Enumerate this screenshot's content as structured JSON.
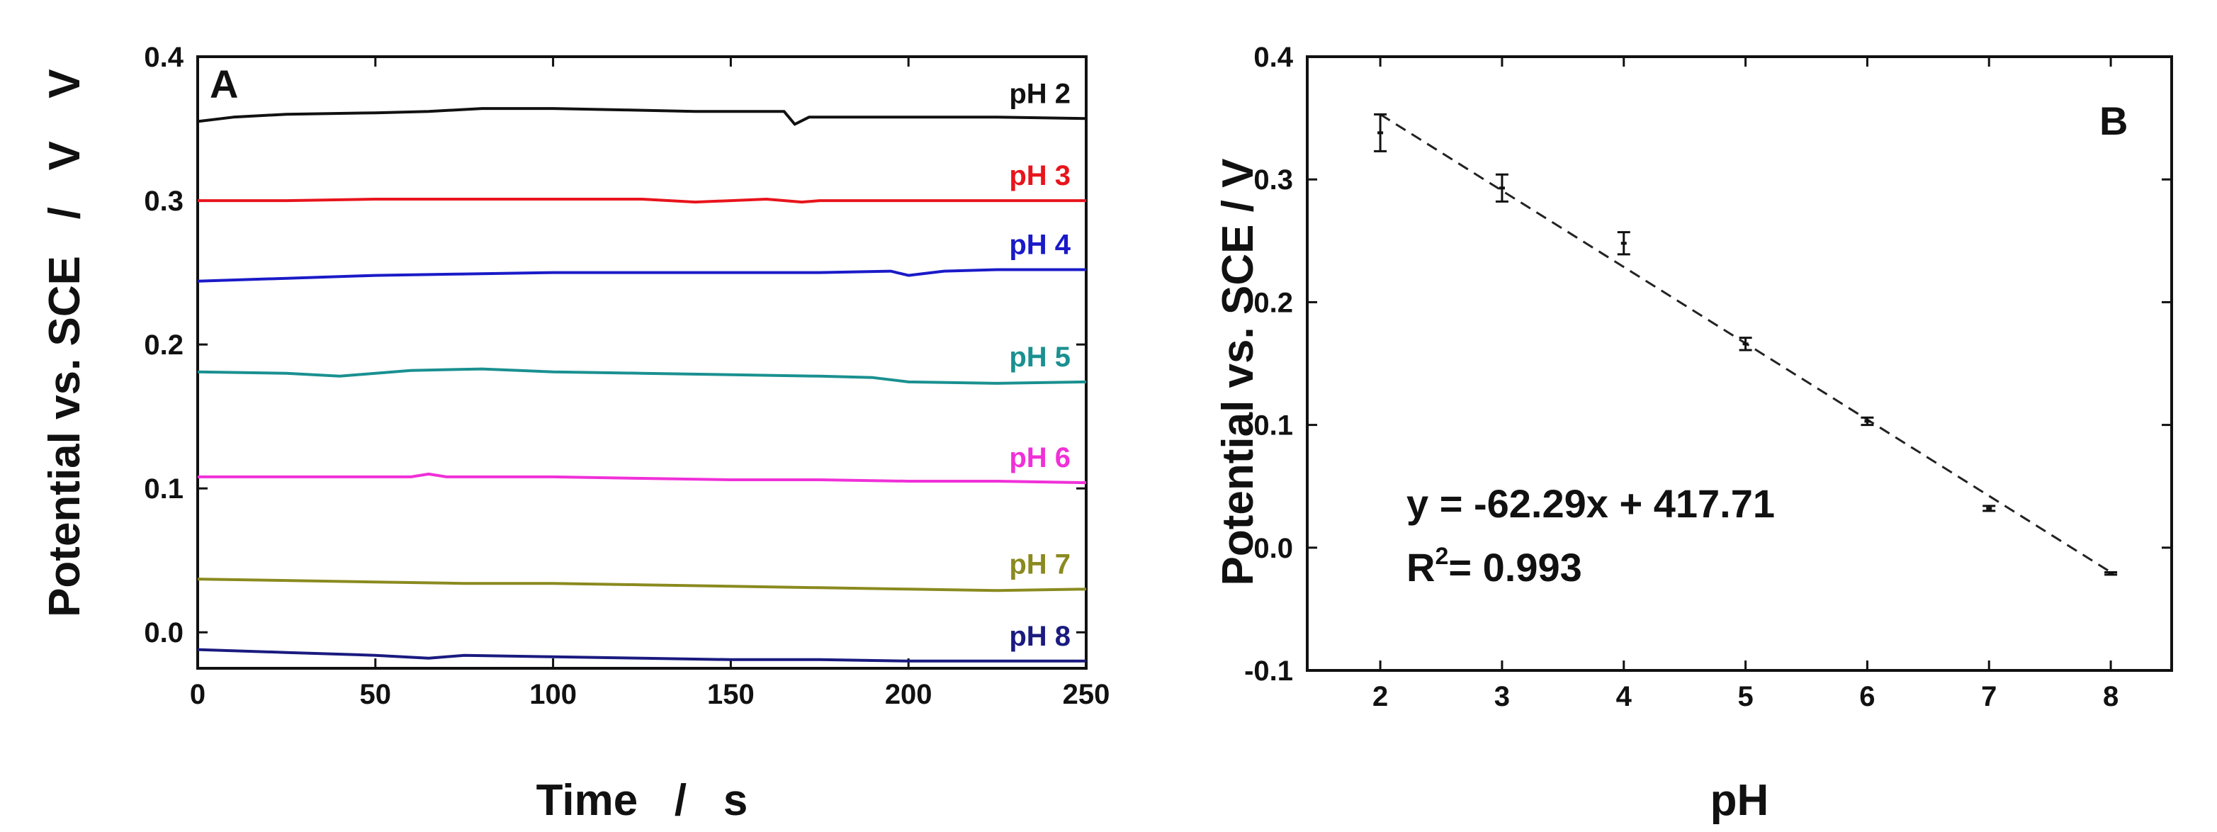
{
  "chart_data": [
    {
      "panel": "A",
      "type": "line",
      "xlabel": "Time   /   s",
      "ylabel": "Potential vs. SCE   /   V",
      "xlim": [
        0,
        250
      ],
      "ylim": [
        -0.025,
        0.4
      ],
      "x_ticks": [
        0,
        50,
        100,
        150,
        200,
        250
      ],
      "x_tick_labels": [
        "0",
        "50",
        "100",
        "150",
        "200",
        "250"
      ],
      "y_ticks": [
        0.0,
        0.1,
        0.2,
        0.3,
        0.4
      ],
      "y_tick_labels": [
        "0.0",
        "0.1",
        "0.2",
        "0.3",
        "0.4"
      ],
      "series": [
        {
          "name": "pH 2",
          "color": "#111111",
          "x": [
            0,
            10,
            25,
            50,
            65,
            80,
            100,
            120,
            140,
            160,
            165,
            168,
            172,
            180,
            200,
            225,
            250
          ],
          "values": [
            0.355,
            0.358,
            0.36,
            0.361,
            0.362,
            0.364,
            0.364,
            0.363,
            0.362,
            0.362,
            0.362,
            0.353,
            0.358,
            0.358,
            0.358,
            0.358,
            0.357
          ]
        },
        {
          "name": "pH 3",
          "color": "#e8141c",
          "x": [
            0,
            25,
            50,
            75,
            100,
            125,
            140,
            150,
            160,
            170,
            175,
            200,
            225,
            250
          ],
          "values": [
            0.3,
            0.3,
            0.301,
            0.301,
            0.301,
            0.301,
            0.299,
            0.3,
            0.301,
            0.299,
            0.3,
            0.3,
            0.3,
            0.3
          ]
        },
        {
          "name": "pH 4",
          "color": "#1a1ac8",
          "x": [
            0,
            25,
            50,
            75,
            100,
            125,
            150,
            175,
            195,
            200,
            210,
            225,
            250
          ],
          "values": [
            0.244,
            0.246,
            0.248,
            0.249,
            0.25,
            0.25,
            0.25,
            0.25,
            0.251,
            0.248,
            0.251,
            0.252,
            0.252
          ]
        },
        {
          "name": "pH 5",
          "color": "#1a9090",
          "x": [
            0,
            25,
            40,
            60,
            80,
            100,
            125,
            150,
            175,
            190,
            200,
            225,
            250
          ],
          "values": [
            0.181,
            0.18,
            0.178,
            0.182,
            0.183,
            0.181,
            0.18,
            0.179,
            0.178,
            0.177,
            0.174,
            0.173,
            0.174
          ]
        },
        {
          "name": "pH 6",
          "color": "#f030d8",
          "x": [
            0,
            25,
            50,
            60,
            65,
            70,
            100,
            125,
            150,
            175,
            200,
            225,
            250
          ],
          "values": [
            0.108,
            0.108,
            0.108,
            0.108,
            0.11,
            0.108,
            0.108,
            0.107,
            0.106,
            0.106,
            0.105,
            0.105,
            0.104
          ]
        },
        {
          "name": "pH 7",
          "color": "#8a8a20",
          "x": [
            0,
            25,
            50,
            75,
            100,
            125,
            150,
            175,
            200,
            225,
            250
          ],
          "values": [
            0.037,
            0.036,
            0.035,
            0.034,
            0.034,
            0.033,
            0.032,
            0.031,
            0.03,
            0.029,
            0.03
          ]
        },
        {
          "name": "pH 8",
          "color": "#1a1a80",
          "x": [
            0,
            25,
            50,
            65,
            75,
            100,
            125,
            150,
            175,
            200,
            225,
            250
          ],
          "values": [
            -0.012,
            -0.014,
            -0.016,
            -0.018,
            -0.016,
            -0.017,
            -0.018,
            -0.019,
            -0.019,
            -0.02,
            -0.02,
            -0.02
          ]
        }
      ]
    },
    {
      "panel": "B",
      "type": "scatter",
      "xlabel": "pH",
      "ylabel": "Potential vs. SCE / V",
      "xlim": [
        1.4,
        8.5
      ],
      "ylim": [
        -0.1,
        0.4
      ],
      "x_ticks": [
        2,
        3,
        4,
        5,
        6,
        7,
        8
      ],
      "x_tick_labels": [
        "2",
        "3",
        "4",
        "5",
        "6",
        "7",
        "8"
      ],
      "y_ticks": [
        -0.1,
        0.0,
        0.1,
        0.2,
        0.3,
        0.4
      ],
      "y_tick_labels": [
        "-0.1",
        "0.0",
        "0.1",
        "0.2",
        "0.3",
        "0.4"
      ],
      "points": {
        "x": [
          2,
          3,
          4,
          5,
          6,
          7,
          8
        ],
        "y": [
          0.338,
          0.293,
          0.248,
          0.166,
          0.103,
          0.032,
          -0.021
        ],
        "error": [
          0.015,
          0.011,
          0.009,
          0.005,
          0.003,
          0.002,
          0.001
        ]
      },
      "fit": {
        "style": "dashed",
        "x": [
          2,
          8
        ],
        "y": [
          0.353,
          -0.02
        ],
        "equation": "y = -62.29x + 417.71",
        "r2_prefix": "R",
        "r2_superscript": "2",
        "r2_value": "= 0.993"
      }
    }
  ],
  "panels": {
    "a": {
      "letter": "A",
      "y_unit": "V"
    },
    "b": {
      "letter": "B"
    }
  }
}
